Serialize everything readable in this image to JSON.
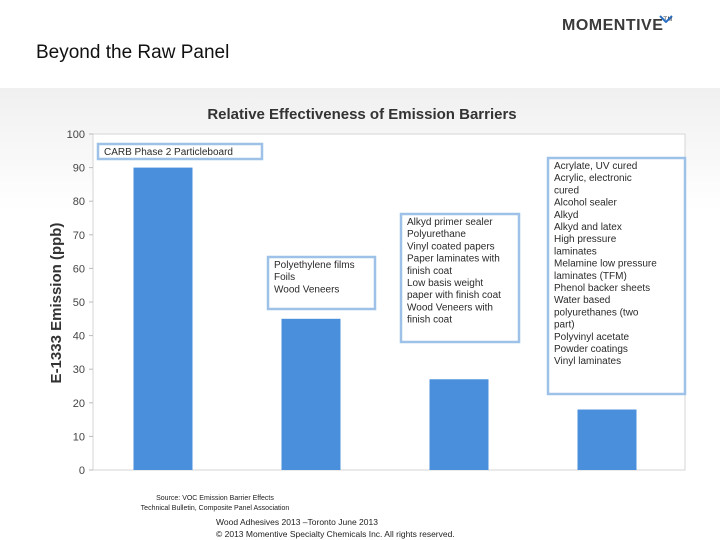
{
  "slide": {
    "title": "Beyond the Raw Panel",
    "logo_text": "MOMENTIVE",
    "logo_tm": "TM"
  },
  "chart_data": {
    "type": "bar",
    "title": "Relative Effectiveness of Emission Barriers",
    "ylabel": "E-1333 Emission (ppb)",
    "xlabel": "",
    "ylim": [
      0,
      100
    ],
    "yticks": [
      0,
      10,
      20,
      30,
      40,
      50,
      60,
      70,
      80,
      90,
      100
    ],
    "grid": false,
    "bar_color": "#4a8fdc",
    "values": [
      90,
      45,
      27,
      18
    ],
    "annotations": [
      {
        "lines": [
          "CARB Phase 2 Particleboard"
        ]
      },
      {
        "lines": [
          "Polyethylene  films",
          "Foils",
          "Wood Veneers"
        ]
      },
      {
        "lines": [
          "Alkyd primer sealer",
          "Polyurethane",
          "Vinyl coated papers",
          "Paper laminates with",
          "finish coat",
          "Low basis weight",
          "paper with finish coat",
          "Wood Veneers with",
          "finish coat"
        ]
      },
      {
        "lines": [
          "Acrylate, UV cured",
          "Acrylic, electronic",
          "cured",
          "Alcohol sealer",
          "Alkyd",
          "Alkyd and latex",
          "High pressure",
          "laminates",
          "Melamine low pressure",
          "laminates (TFM)",
          "Phenol backer sheets",
          "Water based",
          "polyurethanes  (two",
          "part)",
          "Polyvinyl  acetate",
          "Powder coatings",
          "Vinyl laminates"
        ]
      }
    ]
  },
  "source": {
    "line1": "Source: VOC Emission Barrier Effects",
    "line2": "Technical Bulletin, Composite Panel Association"
  },
  "footer": {
    "line1": "Wood Adhesives 2013 –Toronto June 2013",
    "line2": "© 2013 Momentive Specialty Chemicals Inc. All rights reserved."
  }
}
